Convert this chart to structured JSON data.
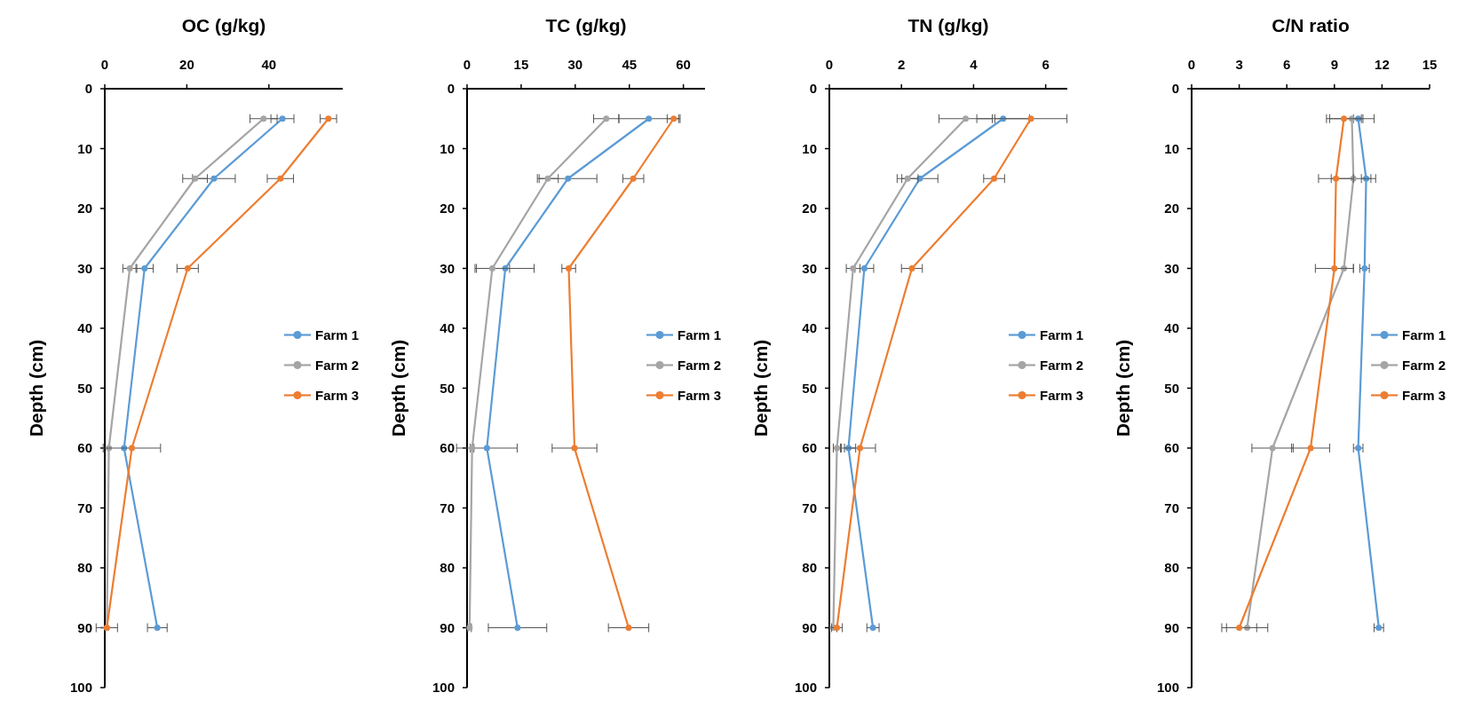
{
  "chart_data": [
    {
      "type": "line",
      "title": "OC (g/kg)",
      "ylabel": "Depth (cm)",
      "xlim": [
        0,
        58
      ],
      "xticks": [
        0,
        20,
        40
      ],
      "ylim": [
        100,
        0
      ],
      "yticks": [
        0,
        10,
        20,
        30,
        40,
        50,
        60,
        70,
        80,
        90,
        100
      ],
      "marker": "circle",
      "legend": "right",
      "grid": false,
      "series": [
        {
          "name": "Farm 1",
          "color": "#5b9bd5",
          "x": [
            43.3,
            26.6,
            9.7,
            4.7,
            12.8
          ],
          "values": [
            5,
            15,
            30,
            60,
            90
          ],
          "xerrors": [
            2.8,
            5.2,
            2.1,
            null,
            2.4
          ]
        },
        {
          "name": "Farm 2",
          "color": "#a5a5a5",
          "x": [
            38.7,
            22,
            6.1,
            1,
            0.5
          ],
          "values": [
            5,
            15,
            30,
            60,
            90
          ],
          "xerrors": [
            3.3,
            3,
            1.7,
            null,
            2.6
          ]
        },
        {
          "name": "Farm 3",
          "color": "#ed7d31",
          "x": [
            54.5,
            42.8,
            20.2,
            6.6,
            0.5
          ],
          "values": [
            5,
            15,
            30,
            60,
            90
          ],
          "xerrors": [
            2,
            3.2,
            2.6,
            7,
            null
          ]
        }
      ]
    },
    {
      "type": "line",
      "title": "TC (g/kg)",
      "ylabel": "Depth (cm)",
      "xlim": [
        0,
        66
      ],
      "xticks": [
        0,
        15,
        30,
        45,
        60
      ],
      "ylim": [
        100,
        0
      ],
      "yticks": [
        0,
        10,
        20,
        30,
        40,
        50,
        60,
        70,
        80,
        90,
        100
      ],
      "marker": "circle",
      "legend": "right",
      "grid": false,
      "series": [
        {
          "name": "Farm 1",
          "color": "#5b9bd5",
          "x": [
            50.4,
            28,
            10.6,
            5.5,
            14
          ],
          "values": [
            5,
            15,
            30,
            60,
            90
          ],
          "xerrors": [
            8.3,
            8,
            8,
            8.4,
            8.1
          ]
        },
        {
          "name": "Farm 2",
          "color": "#a5a5a5",
          "x": [
            38.6,
            22.4,
            7,
            1.4,
            0.7
          ],
          "values": [
            5,
            15,
            30,
            60,
            90
          ],
          "xerrors": [
            3.5,
            2.9,
            4.8,
            0.5,
            0.5
          ]
        },
        {
          "name": "Farm 3",
          "color": "#ed7d31",
          "x": [
            57.3,
            46.1,
            28.2,
            29.8,
            44.8
          ],
          "values": [
            5,
            15,
            30,
            60,
            90
          ],
          "xerrors": [
            1.8,
            2.9,
            1.9,
            6.2,
            5.6
          ]
        }
      ]
    },
    {
      "type": "line",
      "title": "TN (g/kg)",
      "ylabel": "Depth (cm)",
      "xlim": [
        0,
        6.6
      ],
      "xticks": [
        0,
        2,
        4,
        6
      ],
      "ylim": [
        100,
        0
      ],
      "yticks": [
        0,
        10,
        20,
        30,
        40,
        50,
        60,
        70,
        80,
        90,
        100
      ],
      "marker": "circle",
      "legend": "right",
      "grid": false,
      "series": [
        {
          "name": "Farm 1",
          "color": "#5b9bd5",
          "x": [
            4.82,
            2.51,
            0.97,
            0.53,
            1.21
          ],
          "values": [
            5,
            15,
            30,
            60,
            90
          ],
          "xerrors": [
            0.73,
            0.5,
            0.26,
            0.2,
            0.17
          ]
        },
        {
          "name": "Farm 2",
          "color": "#a5a5a5",
          "x": [
            3.78,
            2.17,
            0.66,
            0.21,
            0.11
          ],
          "values": [
            5,
            15,
            30,
            60,
            90
          ],
          "xerrors": [
            0.74,
            0.29,
            0.19,
            0.1,
            0.1
          ]
        },
        {
          "name": "Farm 3",
          "color": "#ed7d31",
          "x": [
            5.59,
            4.57,
            2.29,
            0.85,
            0.21
          ],
          "values": [
            5,
            15,
            30,
            60,
            90
          ],
          "xerrors": [
            1.0,
            0.29,
            0.29,
            0.43,
            0.15
          ]
        }
      ]
    },
    {
      "type": "line",
      "title": "C/N ratio",
      "ylabel": "Depth (cm)",
      "xlim": [
        0,
        15
      ],
      "xticks": [
        0,
        3,
        6,
        9,
        12,
        15
      ],
      "ylim": [
        100,
        0
      ],
      "yticks": [
        0,
        10,
        20,
        30,
        40,
        50,
        60,
        70,
        80,
        90,
        100
      ],
      "marker": "circle",
      "legend": "right",
      "grid": false,
      "series": [
        {
          "name": "Farm 1",
          "color": "#5b9bd5",
          "x": [
            10.5,
            11,
            10.9,
            10.5,
            11.8
          ],
          "values": [
            5,
            15,
            30,
            60,
            90
          ],
          "xerrors": [
            0.3,
            0.3,
            0.3,
            0.3,
            0.3
          ]
        },
        {
          "name": "Farm 2",
          "color": "#a5a5a5",
          "x": [
            10.1,
            10.2,
            9.6,
            5.1,
            3.5
          ],
          "values": [
            5,
            15,
            30,
            60,
            90
          ],
          "xerrors": [
            1.4,
            1.4,
            0.6,
            1.3,
            1.3
          ]
        },
        {
          "name": "Farm 3",
          "color": "#ed7d31",
          "x": [
            9.6,
            9.1,
            9,
            7.5,
            3
          ],
          "values": [
            5,
            15,
            30,
            60,
            90
          ],
          "xerrors": [
            1.1,
            1.1,
            1.2,
            1.2,
            1.1
          ]
        }
      ]
    }
  ]
}
